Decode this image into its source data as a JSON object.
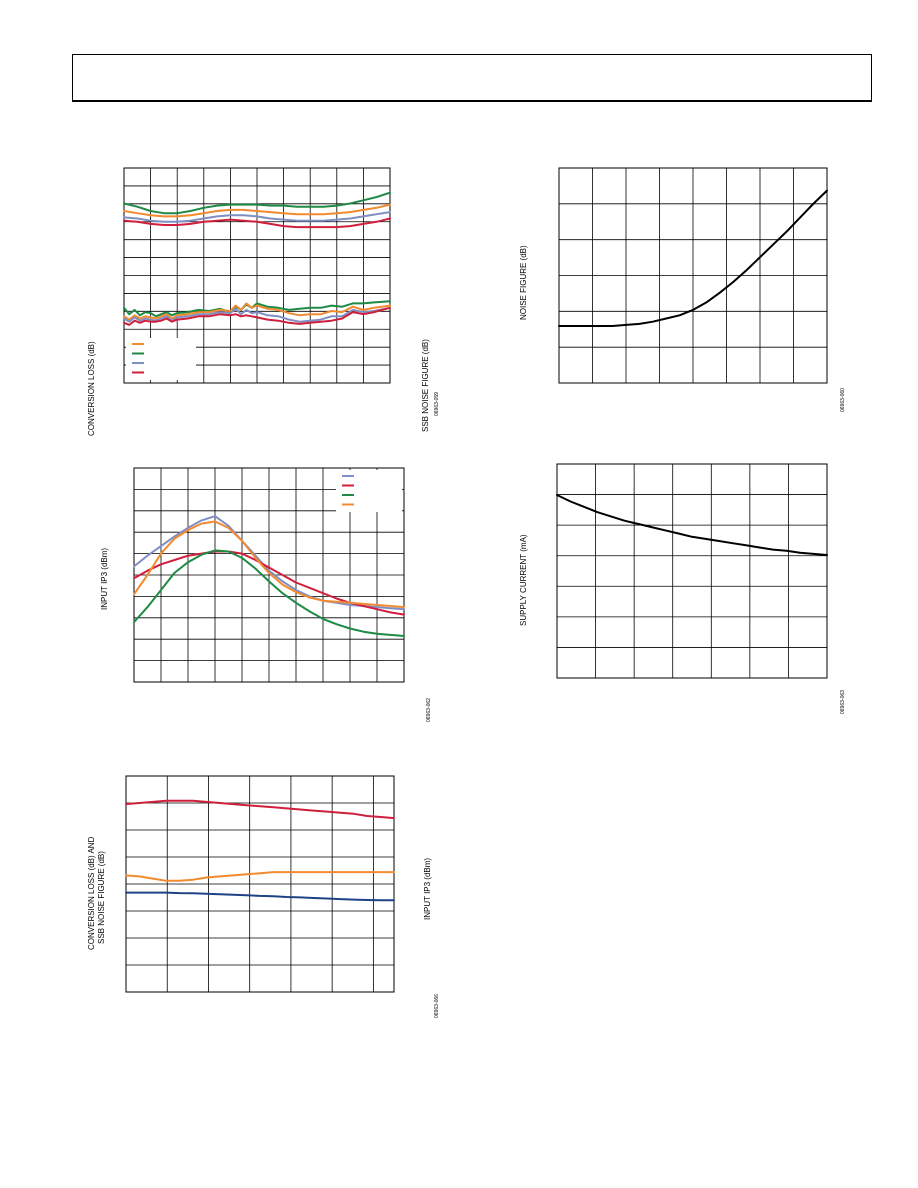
{
  "page": {
    "background": "#ffffff"
  },
  "colors": {
    "blue": "#7f8fc4",
    "red": "#d01f3c",
    "green": "#1e8a45",
    "orange": "#f28a30",
    "navy": "#1d4384",
    "black": "#000000"
  },
  "chart_data": [
    {
      "id": "conversion-loss-and-noise-figure-vs-frequency",
      "type": "line",
      "title": "",
      "ylabel": "CONVERSION LOSS (dB)",
      "y2label": "SSB NOISE FIGURE (dB)",
      "figure_id": "06963-059",
      "xlim": [
        0,
        100
      ],
      "ylim": [
        0,
        100
      ],
      "grid": true,
      "x_divisions": 10,
      "y_divisions": 12,
      "legend_position": "bottom-left",
      "series": [
        {
          "color": "orange",
          "x": [
            0,
            5,
            10,
            15,
            20,
            25,
            30,
            35,
            40,
            45,
            50,
            55,
            60,
            65,
            70,
            75,
            80,
            85,
            90,
            95,
            100
          ],
          "y": [
            80,
            79,
            78,
            77.5,
            77.5,
            78,
            79,
            80,
            80.5,
            80.5,
            80,
            79.5,
            79,
            78.5,
            78.5,
            78.5,
            79,
            79.5,
            80.5,
            81.5,
            83
          ]
        },
        {
          "color": "green",
          "x": [
            0,
            5,
            10,
            15,
            20,
            25,
            30,
            35,
            40,
            45,
            50,
            55,
            60,
            65,
            70,
            75,
            80,
            85,
            90,
            95,
            100
          ],
          "y": [
            83.5,
            82,
            80,
            79,
            79,
            80,
            81.5,
            82.5,
            83,
            83,
            83,
            82.5,
            82.5,
            82,
            82,
            82,
            82.5,
            83.5,
            85,
            86.5,
            88.5
          ]
        },
        {
          "color": "blue",
          "x": [
            0,
            5,
            10,
            15,
            20,
            25,
            30,
            35,
            40,
            45,
            50,
            55,
            60,
            65,
            70,
            75,
            80,
            85,
            90,
            95,
            100
          ],
          "y": [
            77,
            76.5,
            75.5,
            75,
            75,
            75.5,
            76.5,
            77.5,
            78,
            78,
            77.5,
            76.5,
            76,
            75.5,
            75.5,
            75.5,
            76,
            76.5,
            77.5,
            78.5,
            79.5
          ]
        },
        {
          "color": "red",
          "x": [
            0,
            5,
            10,
            15,
            20,
            25,
            30,
            35,
            40,
            45,
            50,
            55,
            60,
            65,
            70,
            75,
            80,
            85,
            90,
            95,
            100
          ],
          "y": [
            75.5,
            75,
            74,
            73.5,
            73.5,
            74,
            75,
            75.5,
            76,
            75.5,
            75,
            74,
            73,
            72.5,
            72.5,
            72.5,
            72.5,
            73,
            74,
            75,
            76.5
          ]
        },
        {
          "color": "green",
          "x": [
            0,
            2,
            4,
            6,
            8,
            10,
            12,
            14,
            16,
            18,
            20,
            24,
            28,
            32,
            36,
            40,
            42,
            44,
            46,
            48,
            50,
            54,
            58,
            62,
            66,
            70,
            74,
            78,
            82,
            86,
            90,
            94,
            100
          ],
          "y": [
            35,
            32,
            34,
            31.5,
            33,
            32.5,
            31,
            32,
            33,
            31.5,
            32.5,
            33,
            34,
            33.5,
            34.5,
            33,
            35.5,
            34,
            36.5,
            35,
            37,
            35.5,
            35,
            34,
            34.5,
            35,
            35,
            36,
            35.5,
            37,
            37,
            37.5,
            38
          ]
        },
        {
          "color": "orange",
          "x": [
            0,
            2,
            4,
            6,
            8,
            10,
            12,
            14,
            16,
            18,
            20,
            24,
            28,
            32,
            36,
            40,
            42,
            44,
            46,
            48,
            50,
            54,
            58,
            62,
            66,
            70,
            74,
            78,
            82,
            86,
            90,
            94,
            100
          ],
          "y": [
            31,
            29.5,
            31.5,
            30,
            31,
            30.5,
            30,
            31,
            32,
            30,
            31.5,
            32,
            33,
            33,
            34,
            33.5,
            36,
            34,
            37,
            35,
            36,
            34.5,
            34,
            32.5,
            31.5,
            32,
            32,
            33.5,
            33,
            35.5,
            34,
            35,
            36
          ]
        },
        {
          "color": "blue",
          "x": [
            0,
            2,
            4,
            6,
            8,
            10,
            12,
            14,
            16,
            18,
            20,
            24,
            28,
            32,
            36,
            40,
            42,
            44,
            46,
            48,
            50,
            54,
            58,
            62,
            66,
            70,
            74,
            78,
            82,
            86,
            90,
            94,
            100
          ],
          "y": [
            30,
            28.5,
            30.5,
            29,
            30,
            29.5,
            29,
            30,
            31,
            29,
            30.5,
            31,
            32,
            32,
            33,
            32.5,
            34.5,
            32,
            34,
            32.5,
            33,
            31.5,
            31,
            29.5,
            28.5,
            29,
            29.5,
            31,
            31,
            34,
            33,
            33.5,
            35
          ]
        },
        {
          "color": "red",
          "x": [
            0,
            2,
            4,
            6,
            8,
            10,
            12,
            14,
            16,
            18,
            20,
            24,
            28,
            32,
            36,
            40,
            42,
            44,
            46,
            48,
            50,
            54,
            58,
            62,
            66,
            70,
            74,
            78,
            82,
            86,
            90,
            94,
            100
          ],
          "y": [
            28,
            27,
            29,
            28,
            29,
            28.5,
            28.5,
            29,
            30,
            28.5,
            29.5,
            30,
            31,
            31,
            32,
            31.5,
            32,
            31,
            31.5,
            31,
            30.5,
            29.5,
            29,
            28,
            27.5,
            28,
            28.5,
            29,
            30,
            33,
            32,
            33,
            35
          ]
        }
      ]
    },
    {
      "id": "noise-figure-curve",
      "type": "line",
      "title": "",
      "ylabel": "NOISE FIGURE (dB)",
      "figure_id": "06963-060",
      "xlim": [
        0,
        100
      ],
      "ylim": [
        0,
        100
      ],
      "grid": true,
      "x_divisions": 8,
      "y_divisions": 6,
      "series": [
        {
          "color": "black",
          "x": [
            0,
            5,
            10,
            15,
            20,
            25,
            30,
            35,
            40,
            45,
            50,
            55,
            60,
            65,
            70,
            75,
            80,
            85,
            90,
            95,
            100
          ],
          "y": [
            26.5,
            26.5,
            26.5,
            26.5,
            26.5,
            27,
            27.5,
            28.5,
            30,
            31.5,
            34,
            37.5,
            42,
            47,
            52.5,
            58.5,
            64.5,
            70.5,
            77,
            83.5,
            89.5
          ]
        }
      ]
    },
    {
      "id": "input-ip3-vs-frequency",
      "type": "line",
      "title": "",
      "ylabel": "INPUT IP3 (dBm)",
      "figure_id": "06963-062",
      "xlim": [
        0,
        100
      ],
      "ylim": [
        0,
        100
      ],
      "grid": true,
      "x_divisions": 10,
      "y_divisions": 10,
      "legend_position": "top-right",
      "series": [
        {
          "color": "blue",
          "x": [
            0,
            5,
            10,
            15,
            20,
            25,
            30,
            35,
            40,
            45,
            50,
            55,
            60,
            65,
            70,
            75,
            80,
            85,
            90,
            95,
            100
          ],
          "y": [
            54,
            59,
            63.5,
            68,
            72,
            75.5,
            77.5,
            73,
            66,
            59,
            52,
            47,
            43,
            40,
            38,
            37,
            36,
            35.5,
            35,
            34.5,
            34
          ]
        },
        {
          "color": "red",
          "x": [
            0,
            5,
            10,
            15,
            20,
            25,
            30,
            35,
            40,
            45,
            50,
            55,
            60,
            65,
            70,
            75,
            80,
            85,
            90,
            95,
            100
          ],
          "y": [
            48.5,
            52,
            55,
            57,
            59,
            60,
            61,
            61,
            60,
            57,
            53.5,
            50,
            46.5,
            44,
            41.5,
            39,
            37,
            35.5,
            34,
            32.5,
            31.5
          ]
        },
        {
          "color": "green",
          "x": [
            0,
            5,
            10,
            15,
            20,
            25,
            30,
            35,
            40,
            45,
            50,
            55,
            60,
            65,
            70,
            75,
            80,
            85,
            90,
            95,
            100
          ],
          "y": [
            28,
            35,
            43,
            51,
            56,
            59.5,
            61.5,
            61,
            58,
            53,
            47,
            41.5,
            37,
            33,
            29.5,
            27,
            25,
            23.5,
            22.5,
            22,
            21.5
          ]
        },
        {
          "color": "orange",
          "x": [
            0,
            5,
            10,
            15,
            20,
            25,
            30,
            35,
            40,
            45,
            50,
            55,
            60,
            65,
            70,
            75,
            80,
            85,
            90,
            95,
            100
          ],
          "y": [
            41,
            50,
            60,
            67,
            71,
            74,
            75,
            72,
            66,
            58,
            51,
            45.5,
            42,
            39.5,
            38,
            37.5,
            37,
            36.5,
            36,
            35.5,
            35
          ]
        }
      ]
    },
    {
      "id": "supply-current-curve",
      "type": "line",
      "title": "",
      "ylabel": "SUPPLY CURRENT (mA)",
      "figure_id": "06963-063",
      "xlim": [
        0,
        100
      ],
      "ylim": [
        0,
        100
      ],
      "grid": true,
      "x_divisions": 7,
      "y_divisions": 7,
      "series": [
        {
          "color": "black",
          "x": [
            0,
            5,
            10,
            15,
            20,
            25,
            30,
            35,
            40,
            45,
            50,
            55,
            60,
            65,
            70,
            75,
            80,
            85,
            90,
            95,
            100
          ],
          "y": [
            85.5,
            82.5,
            80,
            77.5,
            75.5,
            73.5,
            72,
            70.5,
            69,
            67.5,
            66,
            65,
            64,
            63,
            62,
            61,
            60,
            59.5,
            58.5,
            58,
            57.5
          ]
        }
      ]
    },
    {
      "id": "conversion-loss-noise-figure-and-input-ip3",
      "type": "line",
      "title": "",
      "ylabel": "CONVERSION LOSS (dB) AND\nSSB NOISE FIGURE (dB)",
      "y2label": "INPUT IP3 (dBm)",
      "figure_id": "06963-066",
      "xlim": [
        0,
        100
      ],
      "ylim": [
        0,
        100
      ],
      "grid": true,
      "x_divisions": 6.5,
      "y_divisions": 8,
      "series": [
        {
          "color": "red",
          "x": [
            0,
            5,
            10,
            15,
            20,
            25,
            30,
            35,
            40,
            45,
            50,
            55,
            60,
            65,
            70,
            75,
            80,
            85,
            90,
            95,
            100
          ],
          "y": [
            87,
            87.5,
            88,
            88.5,
            88.5,
            88.5,
            88,
            87.5,
            87,
            86.5,
            86,
            85.5,
            85,
            84.5,
            84,
            83.5,
            83,
            82.5,
            81.5,
            81,
            80.5
          ]
        },
        {
          "color": "orange",
          "x": [
            0,
            5,
            10,
            15,
            20,
            25,
            30,
            35,
            40,
            45,
            50,
            55,
            60,
            65,
            70,
            75,
            80,
            85,
            90,
            95,
            100
          ],
          "y": [
            54,
            53.5,
            52.5,
            51.5,
            51.5,
            52,
            53,
            53.5,
            54,
            54.5,
            55,
            55.5,
            55.5,
            55.5,
            55.5,
            55.5,
            55.5,
            55.5,
            55.5,
            55.5,
            55.5
          ]
        },
        {
          "color": "navy",
          "x": [
            0,
            5,
            10,
            15,
            20,
            25,
            30,
            35,
            40,
            45,
            50,
            55,
            60,
            65,
            70,
            75,
            80,
            85,
            90,
            95,
            100
          ],
          "y": [
            46,
            46,
            46,
            46,
            45.8,
            45.7,
            45.5,
            45.3,
            45,
            44.8,
            44.5,
            44.3,
            44,
            43.8,
            43.5,
            43.3,
            43,
            42.8,
            42.6,
            42.5,
            42.5
          ]
        }
      ]
    }
  ]
}
